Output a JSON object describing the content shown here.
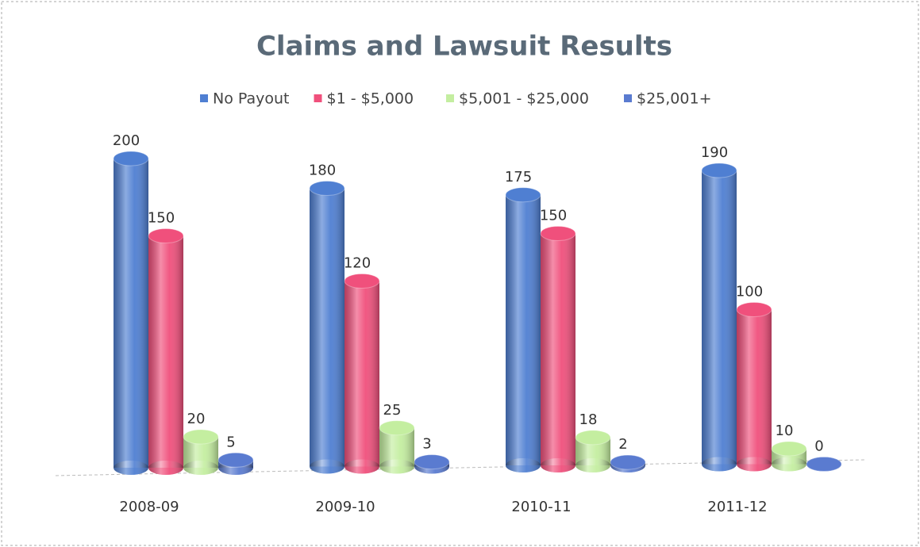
{
  "chart_data": {
    "type": "bar3d",
    "title": "Claims and Lawsuit Results",
    "categories": [
      "2008-09",
      "2009-10",
      "2010-11",
      "2011-12"
    ],
    "series": [
      {
        "name": "No Payout",
        "color": "#4f7fd2",
        "values": [
          200,
          180,
          175,
          190
        ]
      },
      {
        "name": "$1 - $5,000",
        "color": "#f0507c",
        "values": [
          150,
          120,
          150,
          100
        ]
      },
      {
        "name": "$5,001 - $25,000",
        "color": "#c4eea0",
        "values": [
          20,
          25,
          18,
          10
        ]
      },
      {
        "name": "$25,001+",
        "color": "#5a7bd0",
        "values": [
          5,
          3,
          2,
          0
        ]
      }
    ],
    "legend": "top"
  }
}
